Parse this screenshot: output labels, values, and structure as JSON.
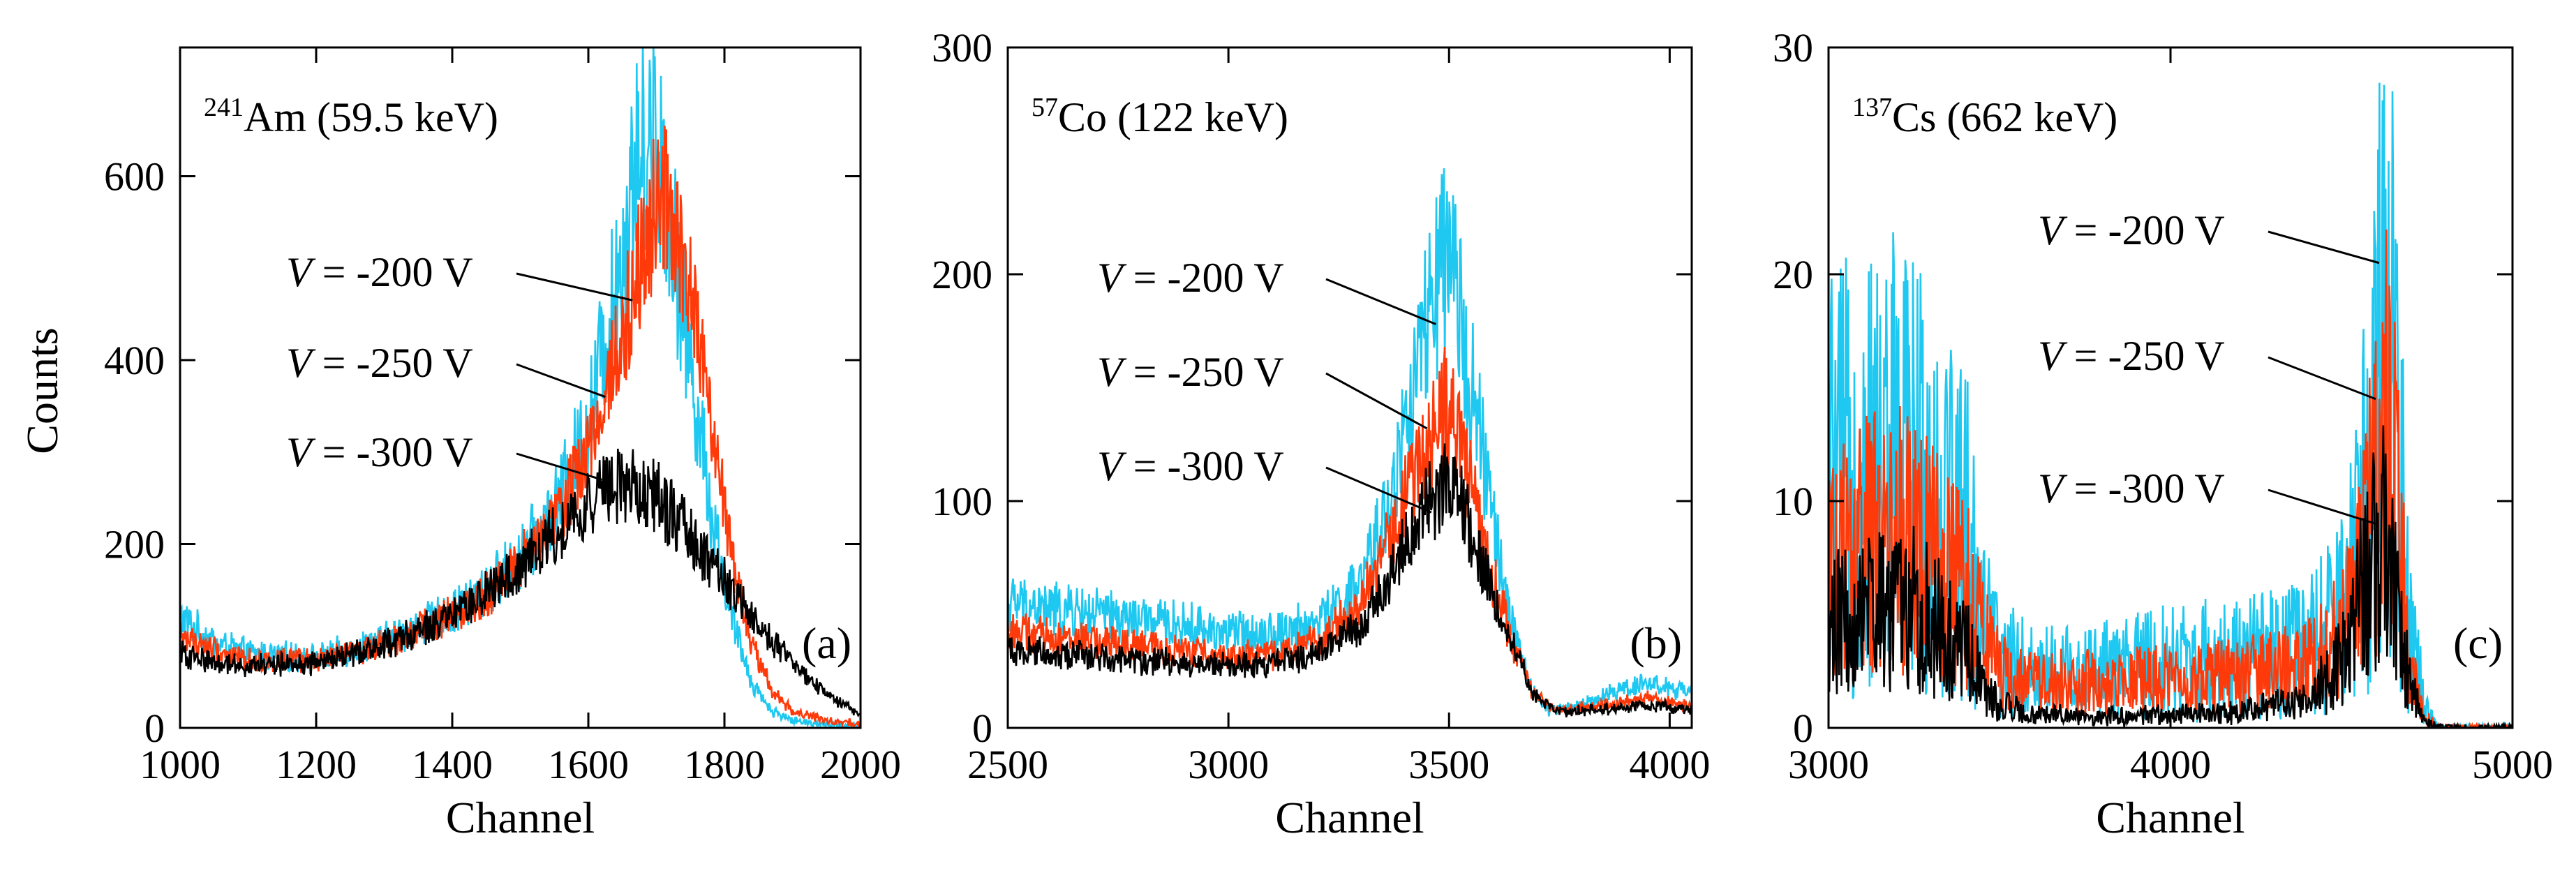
{
  "figure": {
    "ylabel": "Counts",
    "voltage_symbol": "V",
    "series_colors": {
      "-200 V": "#1ec8f0",
      "-250 V": "#ff3a0a",
      "-300 V": "#000000"
    }
  },
  "chart_data": [
    {
      "type": "line",
      "panel_label": "(a)",
      "title_sup": "241",
      "title_main": "Am (59.5 keV)",
      "xlabel": "Channel",
      "ylabel": "Counts",
      "xlim": [
        1000,
        2000
      ],
      "ylim": [
        0,
        740
      ],
      "xticks": [
        1000,
        1200,
        1400,
        1600,
        1800,
        2000
      ],
      "yticks": [
        0,
        200,
        400,
        600
      ],
      "series": [
        {
          "name": "-200 V",
          "color": "#1ec8f0",
          "noise": 0.12,
          "points": [
            [
              1000,
              120
            ],
            [
              1050,
              92
            ],
            [
              1100,
              80
            ],
            [
              1200,
              75
            ],
            [
              1300,
              95
            ],
            [
              1400,
              125
            ],
            [
              1450,
              150
            ],
            [
              1500,
              185
            ],
            [
              1550,
              235
            ],
            [
              1600,
              330
            ],
            [
              1640,
              480
            ],
            [
              1670,
              610
            ],
            [
              1690,
              650
            ],
            [
              1710,
              610
            ],
            [
              1740,
              450
            ],
            [
              1780,
              240
            ],
            [
              1810,
              120
            ],
            [
              1840,
              50
            ],
            [
              1870,
              18
            ],
            [
              1900,
              8
            ],
            [
              1950,
              4
            ],
            [
              2000,
              2
            ]
          ]
        },
        {
          "name": "-250 V",
          "color": "#ff3a0a",
          "noise": 0.1,
          "points": [
            [
              1000,
              100
            ],
            [
              1050,
              85
            ],
            [
              1100,
              74
            ],
            [
              1200,
              72
            ],
            [
              1300,
              92
            ],
            [
              1400,
              122
            ],
            [
              1450,
              145
            ],
            [
              1500,
              180
            ],
            [
              1550,
              225
            ],
            [
              1600,
              300
            ],
            [
              1650,
              430
            ],
            [
              1680,
              520
            ],
            [
              1700,
              575
            ],
            [
              1720,
              560
            ],
            [
              1750,
              470
            ],
            [
              1780,
              330
            ],
            [
              1810,
              190
            ],
            [
              1840,
              90
            ],
            [
              1870,
              40
            ],
            [
              1900,
              18
            ],
            [
              1950,
              8
            ],
            [
              2000,
              4
            ]
          ]
        },
        {
          "name": "-300 V",
          "color": "#000000",
          "noise": 0.1,
          "points": [
            [
              1000,
              80
            ],
            [
              1050,
              72
            ],
            [
              1100,
              68
            ],
            [
              1200,
              70
            ],
            [
              1300,
              90
            ],
            [
              1400,
              120
            ],
            [
              1450,
              145
            ],
            [
              1500,
              175
            ],
            [
              1550,
              210
            ],
            [
              1600,
              245
            ],
            [
              1640,
              265
            ],
            [
              1670,
              262
            ],
            [
              1700,
              250
            ],
            [
              1750,
              210
            ],
            [
              1800,
              160
            ],
            [
              1850,
              110
            ],
            [
              1900,
              70
            ],
            [
              1950,
              35
            ],
            [
              2000,
              15
            ]
          ]
        }
      ],
      "annotations": [
        {
          "voltage": "-200 V",
          "x": 1665,
          "y": 465
        },
        {
          "voltage": "-250 V",
          "x": 1625,
          "y": 360
        },
        {
          "voltage": "-300 V",
          "x": 1620,
          "y": 270
        }
      ]
    },
    {
      "type": "line",
      "panel_label": "(b)",
      "title_sup": "57",
      "title_main": "Co (122 keV)",
      "xlabel": "Channel",
      "ylabel": "",
      "xlim": [
        2500,
        4050
      ],
      "ylim": [
        0,
        300
      ],
      "xticks": [
        2500,
        3000,
        3500,
        4000
      ],
      "yticks": [
        0,
        100,
        200,
        300
      ],
      "series": [
        {
          "name": "-200 V",
          "color": "#1ec8f0",
          "noise": 0.14,
          "points": [
            [
              2500,
              55
            ],
            [
              2600,
              52
            ],
            [
              2700,
              50
            ],
            [
              2800,
              47
            ],
            [
              2900,
              45
            ],
            [
              3000,
              42
            ],
            [
              3100,
              42
            ],
            [
              3200,
              46
            ],
            [
              3300,
              62
            ],
            [
              3380,
              110
            ],
            [
              3440,
              170
            ],
            [
              3490,
              205
            ],
            [
              3530,
              180
            ],
            [
              3580,
              115
            ],
            [
              3630,
              55
            ],
            [
              3680,
              20
            ],
            [
              3720,
              8
            ],
            [
              3800,
              10
            ],
            [
              3900,
              18
            ],
            [
              3950,
              20
            ],
            [
              4050,
              15
            ]
          ]
        },
        {
          "name": "-250 V",
          "color": "#ff3a0a",
          "noise": 0.12,
          "points": [
            [
              2500,
              43
            ],
            [
              2600,
              40
            ],
            [
              2700,
              38
            ],
            [
              2800,
              36
            ],
            [
              2900,
              34
            ],
            [
              3000,
              32
            ],
            [
              3100,
              32
            ],
            [
              3200,
              38
            ],
            [
              3300,
              55
            ],
            [
              3380,
              90
            ],
            [
              3440,
              120
            ],
            [
              3490,
              140
            ],
            [
              3530,
              125
            ],
            [
              3580,
              80
            ],
            [
              3640,
              40
            ],
            [
              3690,
              15
            ],
            [
              3740,
              8
            ],
            [
              3850,
              10
            ],
            [
              3950,
              13
            ],
            [
              4050,
              9
            ]
          ]
        },
        {
          "name": "-300 V",
          "color": "#000000",
          "noise": 0.12,
          "points": [
            [
              2500,
              35
            ],
            [
              2600,
              33
            ],
            [
              2700,
              32
            ],
            [
              2800,
              30
            ],
            [
              2900,
              28
            ],
            [
              3000,
              27
            ],
            [
              3100,
              28
            ],
            [
              3200,
              33
            ],
            [
              3300,
              45
            ],
            [
              3380,
              72
            ],
            [
              3440,
              95
            ],
            [
              3490,
              105
            ],
            [
              3530,
              97
            ],
            [
              3580,
              70
            ],
            [
              3640,
              40
            ],
            [
              3690,
              15
            ],
            [
              3740,
              7
            ],
            [
              3850,
              8
            ],
            [
              3950,
              10
            ],
            [
              4050,
              8
            ]
          ]
        }
      ],
      "annotations": [
        {
          "voltage": "-200 V",
          "x": 3470,
          "y": 178
        },
        {
          "voltage": "-250 V",
          "x": 3450,
          "y": 132
        },
        {
          "voltage": "-300 V",
          "x": 3460,
          "y": 95
        }
      ]
    },
    {
      "type": "line",
      "panel_label": "(c)",
      "title_sup": "137",
      "title_main": "Cs (662 keV)",
      "xlabel": "Channel",
      "ylabel": "",
      "xlim": [
        3000,
        5000
      ],
      "ylim": [
        0,
        30
      ],
      "xticks": [
        3000,
        4000,
        5000
      ],
      "yticks": [
        0,
        10,
        20,
        30
      ],
      "series": [
        {
          "name": "-200 V",
          "color": "#1ec8f0",
          "noise": 0.55,
          "points": [
            [
              3000,
              11
            ],
            [
              3100,
              11
            ],
            [
              3200,
              12
            ],
            [
              3300,
              11
            ],
            [
              3400,
              9
            ],
            [
              3450,
              5
            ],
            [
              3500,
              3
            ],
            [
              3600,
              2.5
            ],
            [
              3800,
              2.5
            ],
            [
              4000,
              3
            ],
            [
              4200,
              3
            ],
            [
              4400,
              3.5
            ],
            [
              4500,
              5
            ],
            [
              4560,
              9
            ],
            [
              4600,
              15
            ],
            [
              4630,
              18
            ],
            [
              4660,
              15
            ],
            [
              4700,
              5
            ],
            [
              4740,
              1
            ],
            [
              4780,
              0
            ],
            [
              5000,
              0
            ]
          ]
        },
        {
          "name": "-250 V",
          "color": "#ff3a0a",
          "noise": 0.45,
          "points": [
            [
              3000,
              7.5
            ],
            [
              3100,
              8
            ],
            [
              3200,
              8.5
            ],
            [
              3300,
              7.5
            ],
            [
              3400,
              6
            ],
            [
              3450,
              4
            ],
            [
              3500,
              2.5
            ],
            [
              3600,
              2
            ],
            [
              3800,
              2
            ],
            [
              4000,
              2.2
            ],
            [
              4200,
              2.3
            ],
            [
              4400,
              2.8
            ],
            [
              4500,
              4
            ],
            [
              4560,
              7
            ],
            [
              4600,
              11
            ],
            [
              4630,
              13
            ],
            [
              4660,
              10
            ],
            [
              4700,
              3
            ],
            [
              4740,
              0.5
            ],
            [
              4780,
              0
            ],
            [
              5000,
              0
            ]
          ]
        },
        {
          "name": "-300 V",
          "color": "#000000",
          "noise": 0.45,
          "points": [
            [
              3000,
              4.5
            ],
            [
              3100,
              5
            ],
            [
              3200,
              5.5
            ],
            [
              3300,
              5
            ],
            [
              3400,
              3.5
            ],
            [
              3450,
              2
            ],
            [
              3500,
              1
            ],
            [
              3600,
              0.6
            ],
            [
              3800,
              0.5
            ],
            [
              4000,
              0.6
            ],
            [
              4200,
              0.7
            ],
            [
              4400,
              1.2
            ],
            [
              4500,
              3
            ],
            [
              4560,
              5.5
            ],
            [
              4600,
              7.5
            ],
            [
              4620,
              8
            ],
            [
              4650,
              6
            ],
            [
              4700,
              2
            ],
            [
              4740,
              0.3
            ],
            [
              4800,
              0
            ],
            [
              5000,
              0
            ]
          ]
        }
      ],
      "annotations": [
        {
          "voltage": "-200 V",
          "x": 4610,
          "y": 20.5
        },
        {
          "voltage": "-250 V",
          "x": 4600,
          "y": 14.5
        },
        {
          "voltage": "-300 V",
          "x": 4600,
          "y": 9
        }
      ]
    }
  ]
}
